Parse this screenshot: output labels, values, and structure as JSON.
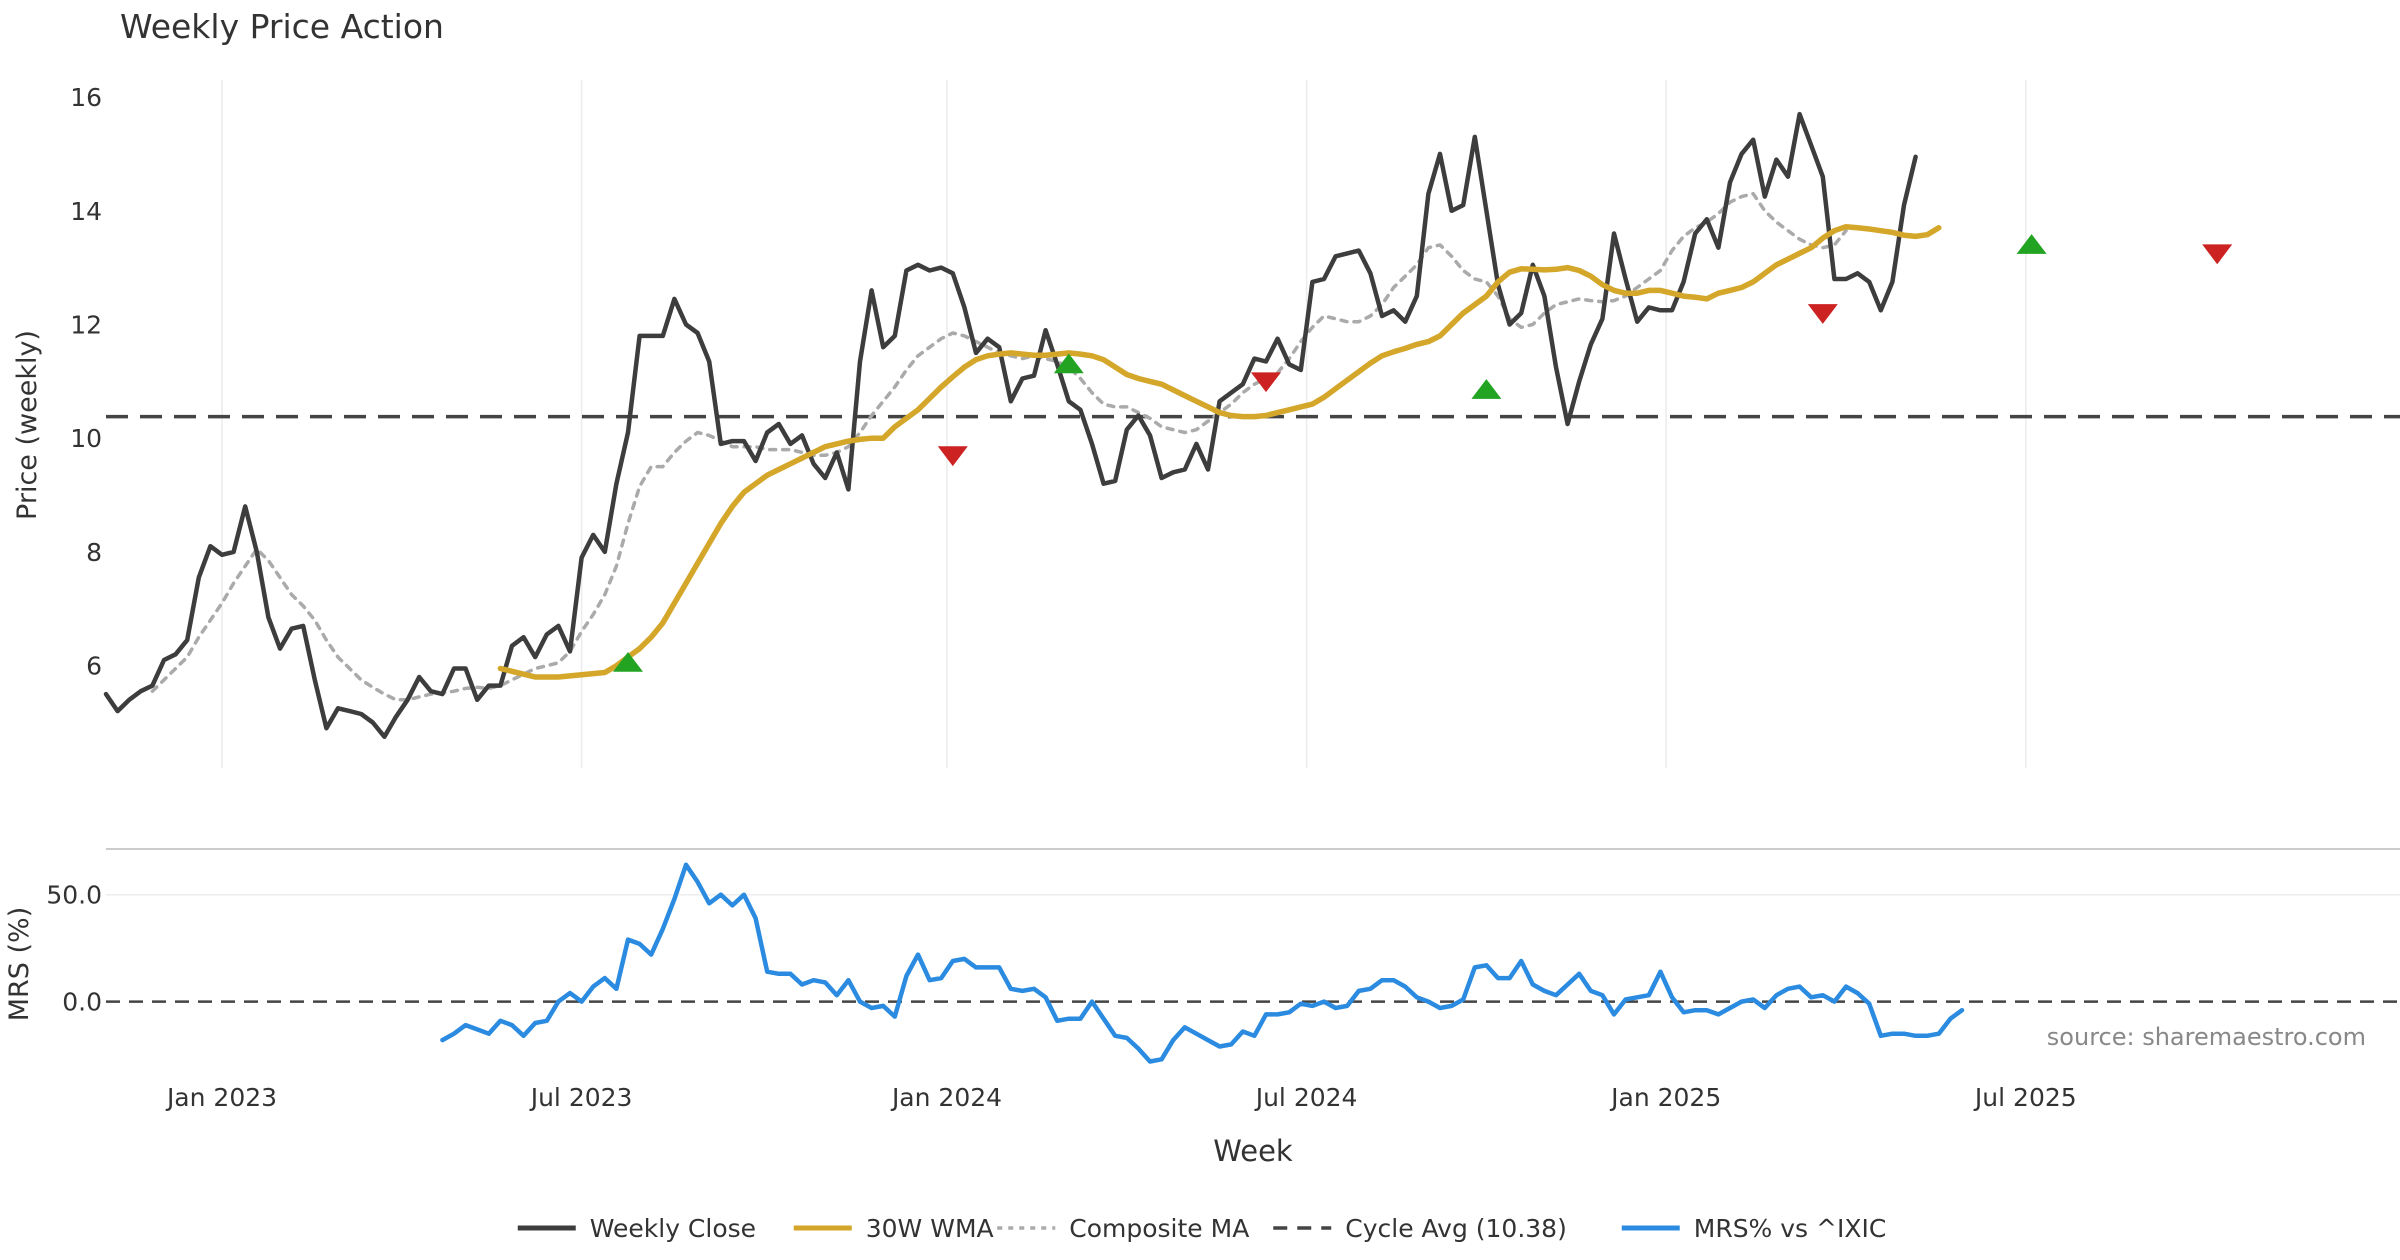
{
  "chart_data": [
    {
      "type": "line",
      "title": "Weekly Price Action",
      "xlabel": "",
      "ylabel": "Price (weekly)",
      "ylim": [
        4.2,
        16.3
      ],
      "yticks": [
        6,
        8,
        10,
        12,
        14,
        16
      ],
      "xticks": [
        "Jan 2023",
        "Jul 2023",
        "Jan 2024",
        "Jul 2024",
        "Jan 2025",
        "Jul 2025"
      ],
      "xlim": [
        0,
        195
      ],
      "x_tick_positions": [
        10,
        41,
        72.5,
        103.5,
        134.5,
        165.5
      ],
      "series": [
        {
          "name": "Weekly Close",
          "color": "#3d3d3d",
          "start_index": 0,
          "values": [
            5.5,
            5.2,
            5.4,
            5.55,
            5.65,
            6.1,
            6.2,
            6.45,
            7.55,
            8.1,
            7.95,
            8.0,
            8.8,
            8.0,
            6.85,
            6.3,
            6.65,
            6.7,
            5.75,
            4.9,
            5.25,
            5.2,
            5.15,
            5.0,
            4.75,
            5.1,
            5.4,
            5.8,
            5.55,
            5.5,
            5.95,
            5.95,
            5.4,
            5.65,
            5.65,
            6.35,
            6.5,
            6.15,
            6.55,
            6.7,
            6.25,
            7.9,
            8.3,
            8.0,
            9.2,
            10.1,
            11.8,
            11.8,
            11.8,
            12.45,
            12.0,
            11.85,
            11.35,
            9.9,
            9.95,
            9.95,
            9.6,
            10.1,
            10.25,
            9.9,
            10.05,
            9.55,
            9.3,
            9.75,
            9.1,
            11.35,
            12.6,
            11.6,
            11.8,
            12.95,
            13.05,
            12.95,
            13.0,
            12.9,
            12.3,
            11.5,
            11.75,
            11.6,
            10.65,
            11.05,
            11.1,
            11.9,
            11.3,
            10.65,
            10.5,
            9.9,
            9.2,
            9.25,
            10.15,
            10.4,
            10.05,
            9.3,
            9.4,
            9.45,
            9.9,
            9.45,
            10.65,
            10.8,
            10.95,
            11.4,
            11.35,
            11.75,
            11.3,
            11.2,
            12.75,
            12.8,
            13.2,
            13.25,
            13.3,
            12.9,
            12.15,
            12.25,
            12.05,
            12.5,
            14.3,
            15.0,
            14.0,
            14.1,
            15.3,
            14.0,
            12.7,
            12.0,
            12.2,
            13.05,
            12.5,
            11.25,
            10.25,
            11.0,
            11.65,
            12.1,
            13.6,
            12.8,
            12.05,
            12.3,
            12.25,
            12.25,
            12.75,
            13.6,
            13.85,
            13.35,
            14.5,
            15.0,
            15.25,
            14.25,
            14.9,
            14.6,
            15.7,
            15.15,
            14.6,
            12.8,
            12.8,
            12.9,
            12.75,
            12.25,
            12.75,
            14.1,
            14.95
          ]
        },
        {
          "name": "30W WMA",
          "color": "#d4a62a",
          "start_index": 34,
          "values": [
            5.95,
            5.9,
            5.85,
            5.8,
            5.8,
            5.8,
            5.82,
            5.84,
            5.86,
            5.88,
            6.0,
            6.15,
            6.3,
            6.5,
            6.75,
            7.1,
            7.45,
            7.8,
            8.15,
            8.5,
            8.8,
            9.05,
            9.2,
            9.35,
            9.45,
            9.55,
            9.65,
            9.75,
            9.85,
            9.9,
            9.95,
            9.98,
            10.0,
            10.0,
            10.2,
            10.35,
            10.5,
            10.7,
            10.9,
            11.08,
            11.25,
            11.38,
            11.45,
            11.48,
            11.5,
            11.48,
            11.46,
            11.46,
            11.48,
            11.5,
            11.48,
            11.45,
            11.38,
            11.25,
            11.12,
            11.05,
            11.0,
            10.95,
            10.85,
            10.75,
            10.65,
            10.55,
            10.45,
            10.4,
            10.38,
            10.38,
            10.4,
            10.45,
            10.5,
            10.55,
            10.6,
            10.72,
            10.87,
            11.02,
            11.17,
            11.32,
            11.45,
            11.52,
            11.58,
            11.65,
            11.7,
            11.8,
            12.0,
            12.2,
            12.35,
            12.5,
            12.75,
            12.92,
            12.98,
            12.97,
            12.96,
            12.97,
            13.0,
            12.95,
            12.85,
            12.7,
            12.6,
            12.55,
            12.55,
            12.6,
            12.6,
            12.55,
            12.5,
            12.48,
            12.45,
            12.55,
            12.6,
            12.65,
            12.75,
            12.9,
            13.05,
            13.15,
            13.25,
            13.35,
            13.52,
            13.65,
            13.72,
            13.7,
            13.68,
            13.65,
            13.62,
            13.57,
            13.55,
            13.58,
            13.7
          ]
        },
        {
          "name": "Composite MA",
          "color": "#aaaaaa",
          "start_index": 4,
          "values": [
            5.55,
            5.75,
            5.95,
            6.15,
            6.5,
            6.8,
            7.1,
            7.45,
            7.75,
            8.05,
            7.85,
            7.55,
            7.25,
            7.05,
            6.8,
            6.45,
            6.15,
            5.95,
            5.75,
            5.62,
            5.5,
            5.4,
            5.4,
            5.45,
            5.5,
            5.52,
            5.55,
            5.6,
            5.62,
            5.6,
            5.65,
            5.75,
            5.85,
            5.95,
            6.0,
            6.05,
            6.25,
            6.6,
            6.9,
            7.25,
            7.75,
            8.5,
            9.15,
            9.5,
            9.5,
            9.75,
            9.95,
            10.1,
            10.05,
            9.95,
            9.85,
            9.85,
            9.85,
            9.8,
            9.8,
            9.8,
            9.75,
            9.7,
            9.7,
            9.75,
            9.85,
            10.1,
            10.4,
            10.65,
            10.9,
            11.2,
            11.45,
            11.6,
            11.75,
            11.85,
            11.8,
            11.7,
            11.6,
            11.5,
            11.45,
            11.4,
            11.45,
            11.4,
            11.35,
            11.25,
            11.05,
            10.8,
            10.6,
            10.55,
            10.55,
            10.45,
            10.35,
            10.2,
            10.15,
            10.1,
            10.15,
            10.3,
            10.45,
            10.6,
            10.8,
            10.95,
            11.05,
            11.15,
            11.4,
            11.7,
            11.95,
            12.15,
            12.1,
            12.05,
            12.05,
            12.15,
            12.35,
            12.65,
            12.85,
            13.05,
            13.35,
            13.4,
            13.2,
            12.95,
            12.8,
            12.75,
            12.5,
            12.1,
            11.95,
            12.0,
            12.2,
            12.35,
            12.4,
            12.45,
            12.42,
            12.4,
            12.42,
            12.5,
            12.65,
            12.8,
            12.95,
            13.3,
            13.55,
            13.7,
            13.8,
            13.95,
            14.15,
            14.25,
            14.3,
            14.0,
            13.8,
            13.65,
            13.5,
            13.4,
            13.35,
            13.4,
            13.65
          ]
        }
      ],
      "reference_lines": [
        {
          "name": "Cycle Avg (10.38)",
          "y": 10.38,
          "color": "#444444"
        }
      ],
      "markers": [
        {
          "type": "buy",
          "index": 45,
          "y": 6.05,
          "color": "#22a322"
        },
        {
          "type": "sell",
          "index": 73,
          "y": 9.7,
          "color": "#cc2222"
        },
        {
          "type": "buy",
          "index": 83,
          "y": 11.3,
          "color": "#22a322"
        },
        {
          "type": "sell",
          "index": 100,
          "y": 11.0,
          "color": "#cc2222"
        },
        {
          "type": "buy",
          "index": 119,
          "y": 10.85,
          "color": "#22a322"
        },
        {
          "type": "sell",
          "index": 148,
          "y": 12.2,
          "color": "#cc2222"
        },
        {
          "type": "buy",
          "index": 166,
          "y": 13.4,
          "color": "#22a322"
        },
        {
          "type": "sell",
          "index": 182,
          "y": 13.25,
          "color": "#cc2222"
        }
      ]
    },
    {
      "type": "line",
      "title": "",
      "xlabel": "Week",
      "ylabel": "MRS (%)",
      "ylim": [
        -32,
        70
      ],
      "yticks": [
        0.0,
        50.0
      ],
      "ytick_labels": [
        "0.0",
        "50.0"
      ],
      "series": [
        {
          "name": "MRS% vs ^IXIC",
          "color": "#2b8be0",
          "start_index": 29,
          "values": [
            -18,
            -15,
            -11,
            -13,
            -15,
            -9,
            -11,
            -16,
            -10,
            -9,
            0,
            4,
            0,
            7,
            11,
            6,
            29,
            27,
            22,
            34,
            48,
            64,
            56,
            46,
            50,
            45,
            50,
            39,
            14,
            13,
            13,
            8,
            10,
            9,
            3,
            10,
            0,
            -3,
            -2,
            -7,
            12,
            22,
            10,
            11,
            19,
            20,
            16,
            16,
            16,
            6,
            5,
            6,
            2,
            -9,
            -8,
            -8,
            0,
            -8,
            -16,
            -17,
            -22,
            -28,
            -27,
            -18,
            -12,
            -15,
            -18,
            -21,
            -20,
            -14,
            -16,
            -6,
            -6,
            -5,
            -1,
            -2,
            0,
            -3,
            -2,
            5,
            6,
            10,
            10,
            7,
            2,
            0,
            -3,
            -2,
            1,
            16,
            17,
            11,
            11,
            19,
            8,
            5,
            3,
            8,
            13,
            5,
            3,
            -6,
            1,
            2,
            3,
            14,
            2,
            -5,
            -4,
            -4,
            -6,
            -3,
            0,
            1,
            -3,
            3,
            6,
            7,
            2,
            3,
            0,
            7,
            4,
            -1,
            -16,
            -15,
            -15,
            -16,
            -16,
            -15,
            -8,
            -4
          ]
        }
      ],
      "reference_lines": [
        {
          "name": "zero",
          "y": 0,
          "color": "#444444"
        }
      ],
      "annotation": "source: sharemaestro.com"
    }
  ],
  "legend": {
    "placement": "bottom-center",
    "items": [
      {
        "label": "Weekly Close",
        "style": "solid",
        "color": "#3d3d3d"
      },
      {
        "label": "30W WMA",
        "style": "solid",
        "color": "#d4a62a"
      },
      {
        "label": "Composite MA",
        "style": "dotted",
        "color": "#aaaaaa"
      },
      {
        "label": "Cycle Avg (10.38)",
        "style": "dashed",
        "color": "#444444"
      },
      {
        "label": "MRS% vs ^IXIC",
        "style": "solid",
        "color": "#2b8be0"
      }
    ]
  }
}
